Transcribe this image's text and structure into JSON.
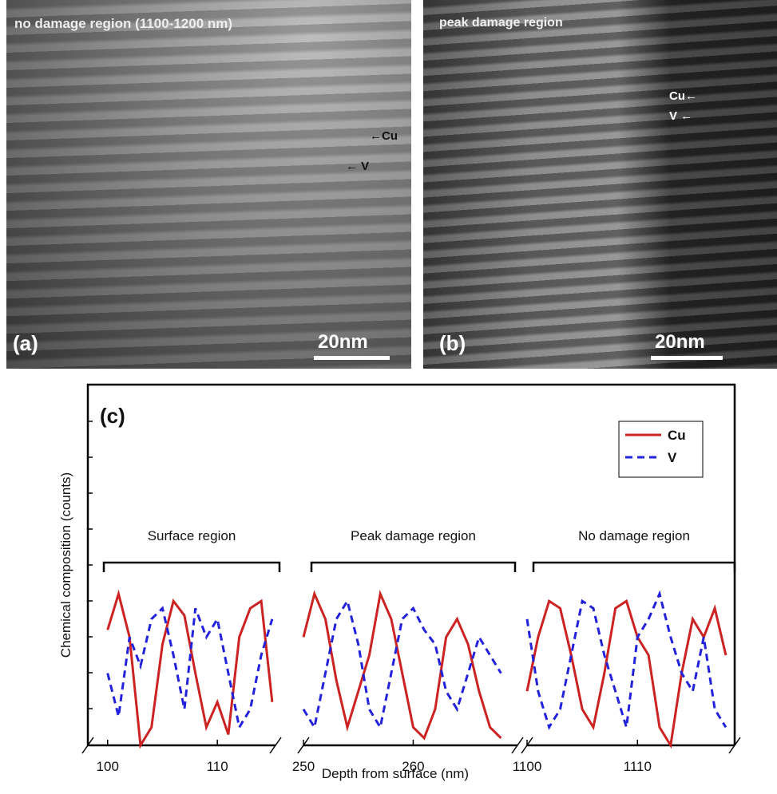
{
  "images": [
    {
      "caption": "no damage region (1100-1200 nm)",
      "panel": "(a)",
      "scale": "20nm",
      "cu": "Cu",
      "v": "V"
    },
    {
      "caption": "peak damage region",
      "panel": "(b)",
      "scale": "20nm",
      "cu": "Cu",
      "v": "V"
    }
  ],
  "chart_data": {
    "type": "line",
    "panel": "(c)",
    "xlabel": "Depth from surface (nm)",
    "ylabel": "Chemical composition (counts)",
    "ylim": [
      0,
      100
    ],
    "segments": [
      {
        "label": "Surface region",
        "xlim": [
          98.2,
          115.3
        ],
        "xticks": [
          100,
          110
        ],
        "x": [
          100,
          101,
          102,
          103,
          104,
          105,
          106,
          107,
          108,
          109,
          110,
          111,
          112,
          113,
          114,
          115
        ]
      },
      {
        "label": "Peak damage region",
        "xlim": [
          250,
          269.5
        ],
        "xticks": [
          250,
          260
        ],
        "x": [
          250,
          251,
          252,
          253,
          254,
          255,
          256,
          257,
          258,
          259,
          260,
          261,
          262,
          263,
          264,
          265,
          266,
          267,
          268
        ]
      },
      {
        "label": "No damage region",
        "xlim": [
          1100,
          1118.8
        ],
        "xticks": [
          1100,
          1110
        ],
        "x": [
          1100,
          1101,
          1102,
          1103,
          1104,
          1105,
          1106,
          1107,
          1108,
          1109,
          1110,
          1111,
          1112,
          1113,
          1114,
          1115,
          1116,
          1117,
          1118
        ]
      }
    ],
    "series": [
      {
        "name": "Cu",
        "color": "#cc2222",
        "dash": false,
        "values": [
          [
            32,
            42,
            30,
            0,
            5,
            28,
            40,
            36,
            20,
            5,
            12,
            3,
            30,
            38,
            40,
            12
          ],
          [
            30,
            42,
            35,
            18,
            5,
            15,
            25,
            42,
            35,
            20,
            5,
            2,
            10,
            30,
            35,
            28,
            15,
            5,
            2
          ],
          [
            15,
            30,
            40,
            38,
            25,
            10,
            5,
            20,
            38,
            40,
            30,
            25,
            5,
            0,
            20,
            35,
            30,
            38,
            25
          ]
        ]
      },
      {
        "name": "V",
        "color": "#2222dd",
        "dash": true,
        "values": [
          [
            20,
            8,
            30,
            22,
            35,
            38,
            25,
            10,
            38,
            30,
            35,
            20,
            5,
            10,
            25,
            35
          ],
          [
            10,
            5,
            20,
            35,
            40,
            28,
            10,
            5,
            20,
            35,
            38,
            32,
            28,
            15,
            10,
            20,
            30,
            25,
            20
          ],
          [
            35,
            15,
            5,
            10,
            25,
            40,
            38,
            25,
            15,
            5,
            30,
            35,
            42,
            30,
            20,
            15,
            30,
            10,
            5
          ]
        ]
      }
    ]
  }
}
